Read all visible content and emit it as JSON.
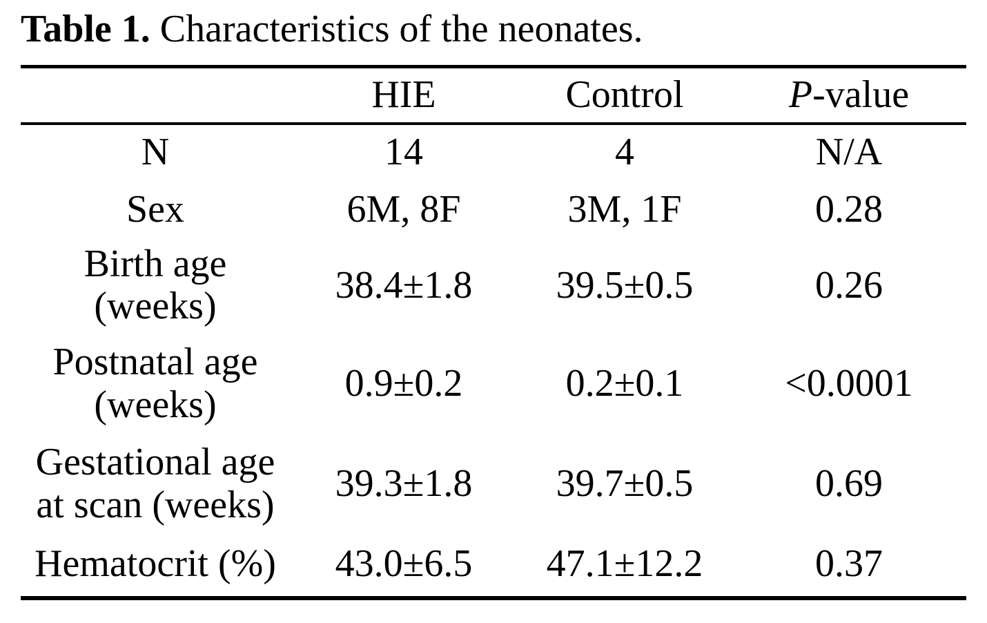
{
  "page": {
    "background": "#ffffff",
    "text_color": "#000000"
  },
  "title": {
    "bold": "Table 1.",
    "rest": " Characteristics of the neonates."
  },
  "table": {
    "header": {
      "col1": "",
      "col2": "HIE",
      "col3": "Control",
      "p_italic": "P",
      "p_rest": "-value"
    },
    "rows": [
      {
        "label": [
          "N"
        ],
        "hie": "14",
        "control": "4",
        "p": "N/A"
      },
      {
        "label": [
          "Sex"
        ],
        "hie": "6M, 8F",
        "control": "3M, 1F",
        "p": "0.28"
      },
      {
        "label": [
          "Birth age",
          "(weeks)"
        ],
        "hie": "38.4±1.8",
        "control": "39.5±0.5",
        "p": "0.26"
      },
      {
        "label": [
          "Postnatal age",
          "(weeks)"
        ],
        "hie": "0.9±0.2",
        "control": "0.2±0.1",
        "p": "<0.0001"
      },
      {
        "label": [
          "Gestational age",
          "at scan (weeks)"
        ],
        "hie": "39.3±1.8",
        "control": "39.7±0.5",
        "p": "0.69"
      },
      {
        "label": [
          "Hematocrit (%)"
        ],
        "hie": "43.0±6.5",
        "control": "47.1±12.2",
        "p": "0.37"
      }
    ]
  }
}
